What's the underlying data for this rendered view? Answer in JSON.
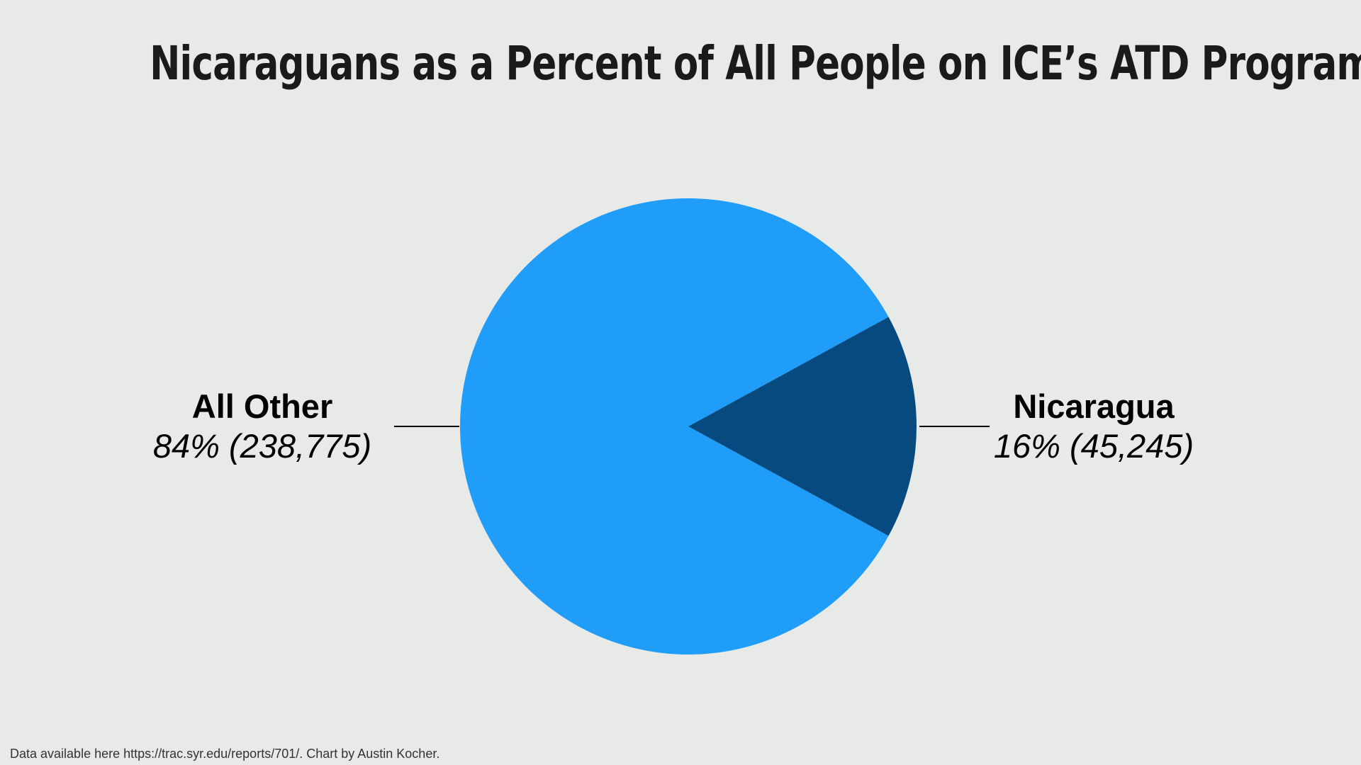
{
  "background": "#E8EAE8",
  "title": "Nicaraguans as a Percent of All People on ICE’s ATD Program",
  "footnote": "Data available here https://trac.syr.edu/reports/701/. Chart by Austin Kocher.",
  "chart_data": {
    "type": "pie",
    "title": "Nicaraguans as a Percent of All People on ICE’s ATD Program",
    "slices": [
      {
        "name": "All Other",
        "percent_label": "84% (238,775)",
        "value": 238775,
        "percent": 84,
        "color": "#1F9DF9"
      },
      {
        "name": "Nicaragua",
        "percent_label": "16% (45,245)",
        "value": 45245,
        "percent": 16,
        "color": "#064A80"
      }
    ],
    "legend": "none"
  }
}
